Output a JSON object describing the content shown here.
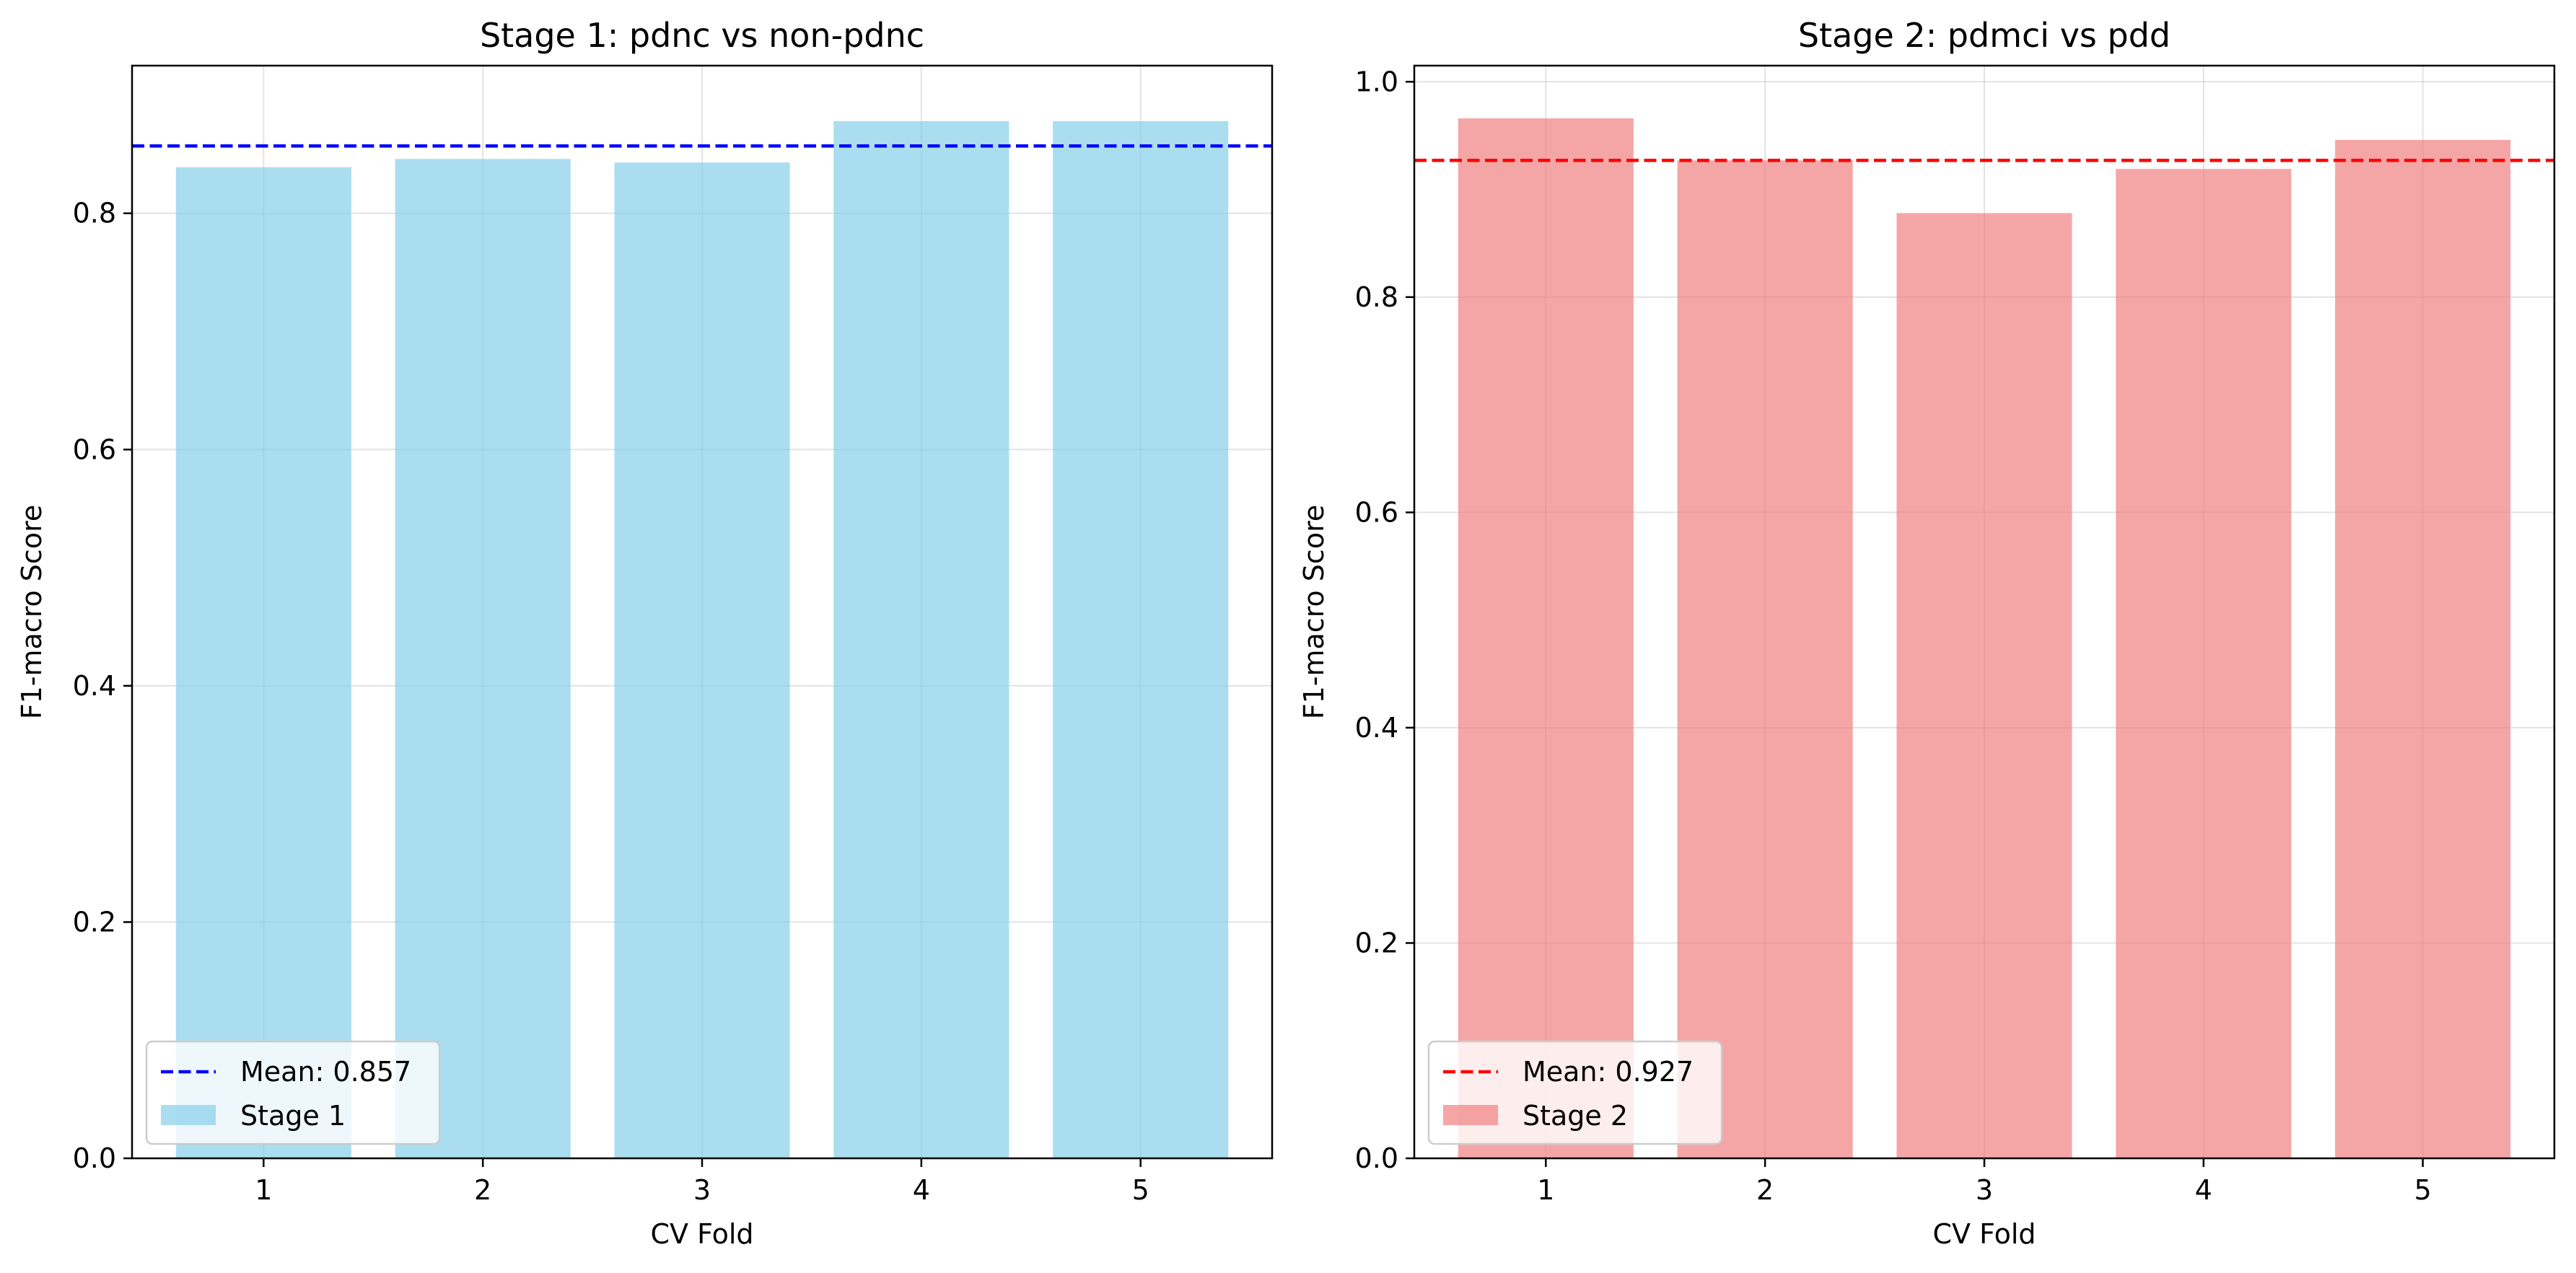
{
  "chart_data": [
    {
      "type": "bar",
      "title": "Stage 1: pdnc vs non-pdnc",
      "xlabel": "CV Fold",
      "ylabel": "F1-macro Score",
      "categories": [
        "1",
        "2",
        "3",
        "4",
        "5"
      ],
      "series": [
        {
          "name": "Stage 1",
          "values": [
            0.839,
            0.846,
            0.843,
            0.878,
            0.878
          ],
          "color": "#87CEEB",
          "opacity": 0.7
        }
      ],
      "mean_line": {
        "label": "Mean: 0.857",
        "value": 0.857,
        "color": "#0000ff",
        "style": "dashed"
      },
      "ylim": [
        0,
        0.925
      ],
      "yticks": [
        0.0,
        0.2,
        0.4,
        0.6,
        0.8
      ],
      "ytick_labels": [
        "0.0",
        "0.2",
        "0.4",
        "0.6",
        "0.8"
      ],
      "grid": true,
      "legend_location": "lower-left"
    },
    {
      "type": "bar",
      "title": "Stage 2: pdmci vs pdd",
      "xlabel": "CV Fold",
      "ylabel": "F1-macro Score",
      "categories": [
        "1",
        "2",
        "3",
        "4",
        "5"
      ],
      "series": [
        {
          "name": "Stage 2",
          "values": [
            0.966,
            0.927,
            0.878,
            0.919,
            0.946
          ],
          "color": "#F08080",
          "opacity": 0.7
        }
      ],
      "mean_line": {
        "label": "Mean: 0.927",
        "value": 0.927,
        "color": "#ff0000",
        "style": "dashed"
      },
      "ylim": [
        0,
        1.015
      ],
      "yticks": [
        0.0,
        0.2,
        0.4,
        0.6,
        0.8,
        1.0
      ],
      "ytick_labels": [
        "0.0",
        "0.2",
        "0.4",
        "0.6",
        "0.8",
        "1.0"
      ],
      "grid": true,
      "legend_location": "lower-left"
    }
  ]
}
